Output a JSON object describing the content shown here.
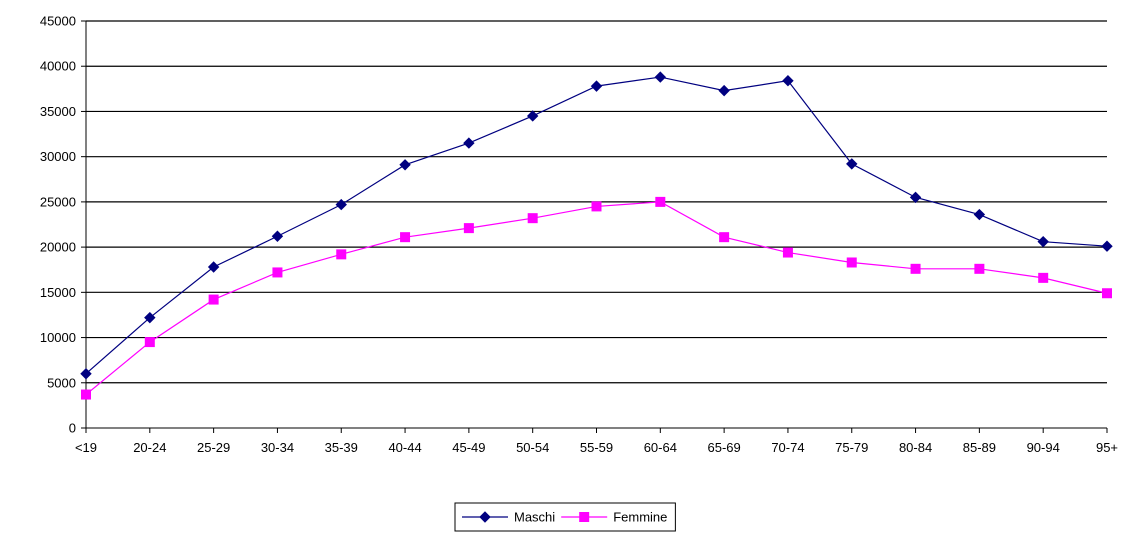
{
  "chart_data": {
    "type": "line",
    "categories": [
      "<19",
      "20-24",
      "25-29",
      "30-34",
      "35-39",
      "40-44",
      "45-49",
      "50-54",
      "55-59",
      "60-64",
      "65-69",
      "70-74",
      "75-79",
      "80-84",
      "85-89",
      "90-94",
      "95+"
    ],
    "series": [
      {
        "name": "Maschi",
        "color": "#000080",
        "marker": "diamond",
        "values": [
          6000,
          12200,
          17800,
          21200,
          24700,
          29100,
          31500,
          34500,
          37800,
          38800,
          37300,
          38400,
          29200,
          25500,
          23600,
          20600,
          20100
        ]
      },
      {
        "name": "Femmine",
        "color": "#FF00FF",
        "marker": "square",
        "values": [
          3700,
          9500,
          14200,
          17200,
          19200,
          21100,
          22100,
          23200,
          24500,
          25000,
          21100,
          19400,
          18300,
          17600,
          17600,
          16600,
          14900
        ]
      }
    ],
    "yticks": [
      "0",
      "5000",
      "10000",
      "15000",
      "20000",
      "25000",
      "30000",
      "35000",
      "40000",
      "45000"
    ],
    "ylim": [
      0,
      45000
    ],
    "grid": true,
    "legend_position": "bottom-center",
    "title": "",
    "xlabel": "",
    "ylabel": ""
  }
}
